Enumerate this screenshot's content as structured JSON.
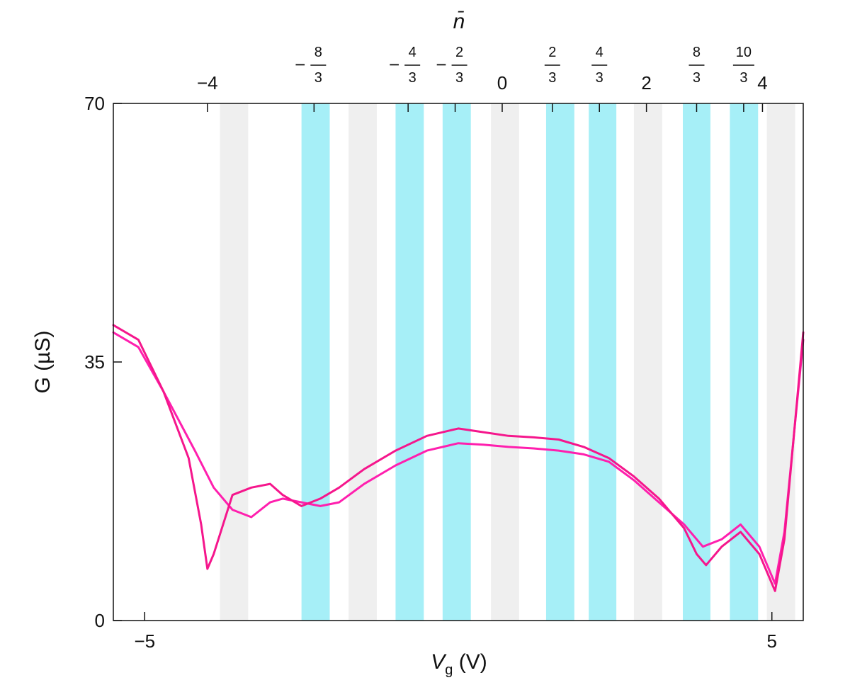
{
  "chart_data": {
    "type": "line",
    "xlabel": "V",
    "xlabel_sub": "g",
    "xlabel_unit": "(V)",
    "ylabel": "G (µS)",
    "top_axis_label": "n̄",
    "xlim": [
      -5.5,
      5.5
    ],
    "ylim": [
      0,
      70
    ],
    "x_ticks": [
      {
        "value": -5,
        "label": "−5"
      },
      {
        "value": 5,
        "label": "5"
      }
    ],
    "y_ticks": [
      {
        "value": 0,
        "label": "0"
      },
      {
        "value": 35,
        "label": "35"
      },
      {
        "value": 70,
        "label": "70"
      }
    ],
    "top_ticks": [
      {
        "vg": -4.0,
        "sign": "",
        "num": "−4",
        "den": ""
      },
      {
        "vg": -2.3,
        "sign": "−",
        "num": "8",
        "den": "3"
      },
      {
        "vg": -0.8,
        "sign": "−",
        "num": "4",
        "den": "3"
      },
      {
        "vg": -0.05,
        "sign": "−",
        "num": "2",
        "den": "3"
      },
      {
        "vg": 0.7,
        "sign": "",
        "num": "0",
        "den": ""
      },
      {
        "vg": 1.5,
        "sign": "",
        "num": "2",
        "den": "3"
      },
      {
        "vg": 2.25,
        "sign": "",
        "num": "4",
        "den": "3"
      },
      {
        "vg": 3.0,
        "sign": "",
        "num": "2",
        "den": ""
      },
      {
        "vg": 3.8,
        "sign": "",
        "num": "8",
        "den": "3"
      },
      {
        "vg": 4.55,
        "sign": "",
        "num": "10",
        "den": "3"
      },
      {
        "vg": 4.85,
        "sign": "",
        "num": "4",
        "den": ""
      }
    ],
    "bands": [
      {
        "x0": -3.8,
        "x1": -3.35,
        "type": "integer",
        "color": "#efefef"
      },
      {
        "x0": -2.5,
        "x1": -2.05,
        "type": "fractional",
        "color": "#a6eff7"
      },
      {
        "x0": -1.75,
        "x1": -1.3,
        "type": "integer",
        "color": "#efefef"
      },
      {
        "x0": -1.0,
        "x1": -0.55,
        "type": "fractional",
        "color": "#a6eff7"
      },
      {
        "x0": -0.25,
        "x1": 0.2,
        "type": "fractional",
        "color": "#a6eff7"
      },
      {
        "x0": 0.52,
        "x1": 0.97,
        "type": "integer",
        "color": "#efefef"
      },
      {
        "x0": 1.4,
        "x1": 1.85,
        "type": "fractional",
        "color": "#a6eff7"
      },
      {
        "x0": 2.08,
        "x1": 2.52,
        "type": "fractional",
        "color": "#a6eff7"
      },
      {
        "x0": 2.8,
        "x1": 3.25,
        "type": "integer",
        "color": "#efefef"
      },
      {
        "x0": 3.58,
        "x1": 4.02,
        "type": "fractional",
        "color": "#a6eff7"
      },
      {
        "x0": 4.33,
        "x1": 4.78,
        "type": "fractional",
        "color": "#a6eff7"
      },
      {
        "x0": 4.92,
        "x1": 5.37,
        "type": "integer",
        "color": "#efefef"
      }
    ],
    "series": [
      {
        "color": "#ff1fae",
        "shape": 1.0,
        "points": [
          [
            -5.5,
            39
          ],
          [
            -5.1,
            37
          ],
          [
            -4.7,
            31
          ],
          [
            -4.2,
            23
          ],
          [
            -3.9,
            18
          ],
          [
            -3.6,
            15
          ],
          [
            -3.3,
            14
          ],
          [
            -3.0,
            16
          ],
          [
            -2.8,
            16.5
          ],
          [
            -2.5,
            16
          ],
          [
            -2.2,
            15.5
          ],
          [
            -1.9,
            16
          ],
          [
            -1.5,
            18.5
          ],
          [
            -1.0,
            21
          ],
          [
            -0.5,
            23
          ],
          [
            0.0,
            24
          ],
          [
            0.4,
            23.8
          ],
          [
            0.8,
            23.5
          ],
          [
            1.2,
            23.3
          ],
          [
            1.6,
            23
          ],
          [
            2.0,
            22.5
          ],
          [
            2.4,
            21.5
          ],
          [
            2.8,
            19
          ],
          [
            3.2,
            16
          ],
          [
            3.6,
            13
          ],
          [
            3.9,
            10
          ],
          [
            4.2,
            11
          ],
          [
            4.5,
            13
          ],
          [
            4.8,
            10
          ],
          [
            5.05,
            5
          ],
          [
            5.2,
            12
          ],
          [
            5.5,
            38
          ]
        ]
      },
      {
        "color": "#f5168c",
        "shape": 0.9,
        "points": [
          [
            -5.5,
            40
          ],
          [
            -5.1,
            38
          ],
          [
            -4.7,
            31
          ],
          [
            -4.3,
            22
          ],
          [
            -4.1,
            13
          ],
          [
            -4.0,
            7
          ],
          [
            -3.9,
            9
          ],
          [
            -3.6,
            17
          ],
          [
            -3.3,
            18
          ],
          [
            -3.0,
            18.5
          ],
          [
            -2.8,
            17
          ],
          [
            -2.5,
            15.5
          ],
          [
            -2.2,
            16.5
          ],
          [
            -1.9,
            18
          ],
          [
            -1.5,
            20.5
          ],
          [
            -1.0,
            23
          ],
          [
            -0.5,
            25
          ],
          [
            0.0,
            26
          ],
          [
            0.4,
            25.5
          ],
          [
            0.8,
            25
          ],
          [
            1.2,
            24.8
          ],
          [
            1.6,
            24.5
          ],
          [
            2.0,
            23.5
          ],
          [
            2.4,
            22
          ],
          [
            2.8,
            19.5
          ],
          [
            3.2,
            16.5
          ],
          [
            3.6,
            12.5
          ],
          [
            3.8,
            9
          ],
          [
            3.95,
            7.5
          ],
          [
            4.2,
            10
          ],
          [
            4.5,
            12
          ],
          [
            4.8,
            9
          ],
          [
            5.05,
            4
          ],
          [
            5.2,
            11
          ],
          [
            5.5,
            39
          ]
        ]
      }
    ]
  }
}
